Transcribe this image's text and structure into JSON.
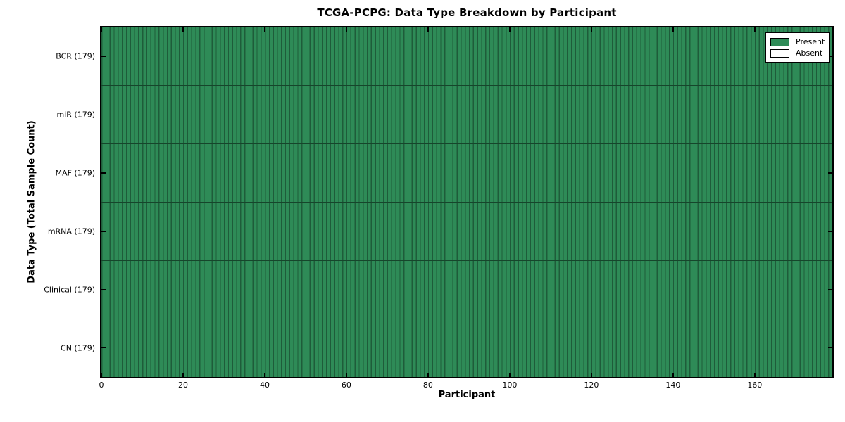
{
  "figure": {
    "title": "TCGA-PCPG: Data Type Breakdown by Participant",
    "xlabel": "Participant",
    "ylabel": "Data Type (Total Sample Count)"
  },
  "legend": {
    "items": [
      {
        "label": "Present",
        "color": "#2e8b57"
      },
      {
        "label": "Absent",
        "color": "#ffffff"
      }
    ]
  },
  "chart_data": {
    "type": "heatmap",
    "title": "TCGA-PCPG: Data Type Breakdown by Participant",
    "xlabel": "Participant",
    "ylabel": "Data Type (Total Sample Count)",
    "n_participants": 179,
    "xlim": [
      0,
      179
    ],
    "x_ticks": [
      0,
      20,
      40,
      60,
      80,
      100,
      120,
      140,
      160
    ],
    "rows": [
      {
        "label": "BCR (179)",
        "data_type": "BCR",
        "total_samples": 179,
        "present": 179,
        "absent": 0
      },
      {
        "label": "miR (179)",
        "data_type": "miR",
        "total_samples": 179,
        "present": 179,
        "absent": 0
      },
      {
        "label": "MAF (179)",
        "data_type": "MAF",
        "total_samples": 179,
        "present": 179,
        "absent": 0
      },
      {
        "label": "mRNA (179)",
        "data_type": "mRNA",
        "total_samples": 179,
        "present": 179,
        "absent": 0
      },
      {
        "label": "Clinical (179)",
        "data_type": "Clinical",
        "total_samples": 179,
        "present": 179,
        "absent": 0
      },
      {
        "label": "CN (179)",
        "data_type": "CN",
        "total_samples": 179,
        "present": 179,
        "absent": 0
      }
    ],
    "legend_position": "upper right",
    "grid": false,
    "colors": {
      "present": "#2e8b57",
      "absent": "#ffffff",
      "cell_edge": "#1e5c3a",
      "row_divider": "#16452b",
      "frame": "#000000"
    }
  }
}
